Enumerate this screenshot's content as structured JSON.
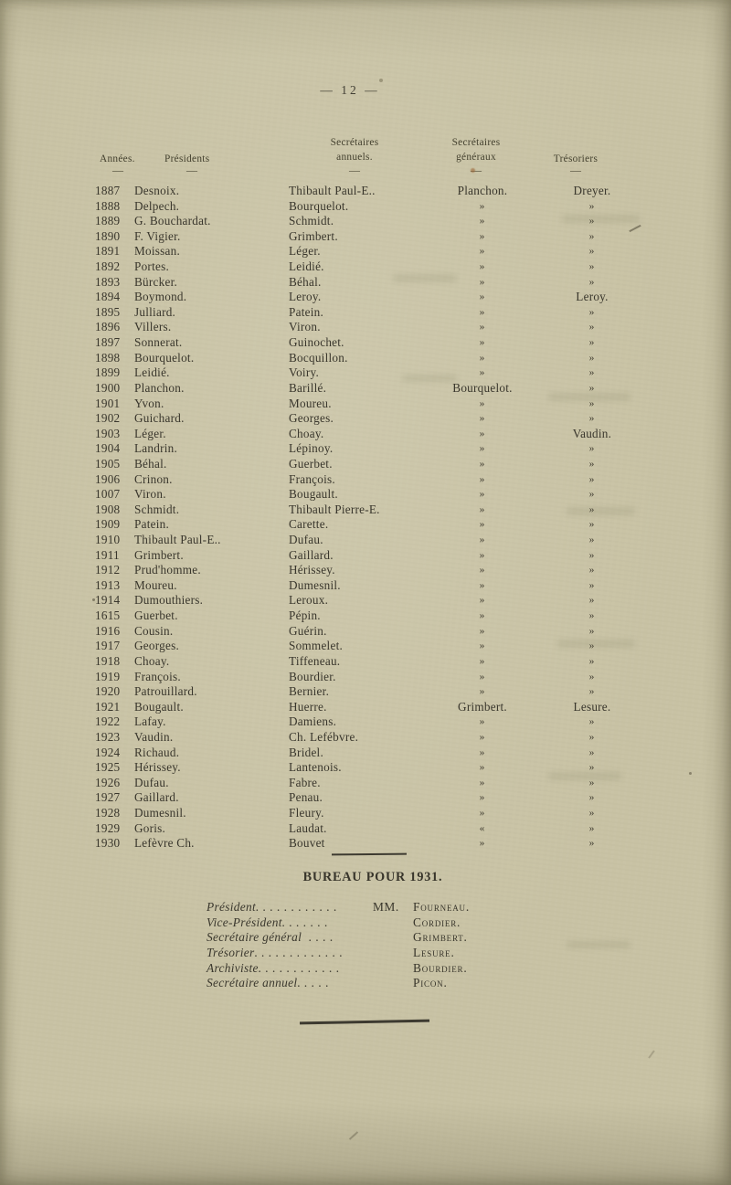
{
  "page": {
    "number": "— 12 —"
  },
  "table": {
    "headers": {
      "years": "Années.",
      "presidents": "Présidents",
      "sec_annuels": "Secrétaires\nannuels.",
      "sec_generaux": "Secrétaires\ngénéraux",
      "tresoriers": "Trésoriers",
      "underline": "—"
    },
    "rows": [
      [
        "1887",
        "Desnoix.",
        "Thibault Paul-E..",
        "Planchon.",
        "Dreyer."
      ],
      [
        "1888",
        "Delpech.",
        "Bourquelot.",
        "»",
        "»"
      ],
      [
        "1889",
        "G. Bouchardat.",
        "Schmidt.",
        "»",
        "»"
      ],
      [
        "1890",
        "F. Vigier.",
        "Grimbert.",
        "»",
        "»"
      ],
      [
        "1891",
        "Moissan.",
        "Léger.",
        "»",
        "»"
      ],
      [
        "1892",
        "Portes.",
        "Leidié.",
        "»",
        "»"
      ],
      [
        "1893",
        "Bürcker.",
        "Béhal.",
        "»",
        "»"
      ],
      [
        "1894",
        "Boymond.",
        "Leroy.",
        "»",
        "Leroy."
      ],
      [
        "1895",
        "Julliard.",
        "Patein.",
        "»",
        "»"
      ],
      [
        "1896",
        "Villers.",
        "Viron.",
        "»",
        "»"
      ],
      [
        "1897",
        "Sonnerat.",
        "Guinochet.",
        "»",
        "»"
      ],
      [
        "1898",
        "Bourquelot.",
        "Bocquillon.",
        "»",
        "»"
      ],
      [
        "1899",
        "Leidié.",
        "Voiry.",
        "»",
        "»"
      ],
      [
        "1900",
        "Planchon.",
        "Barillé.",
        "Bourquelot.",
        "»"
      ],
      [
        "1901",
        "Yvon.",
        "Moureu.",
        "»",
        "»"
      ],
      [
        "1902",
        "Guichard.",
        "Georges.",
        "»",
        "»"
      ],
      [
        "1903",
        "Léger.",
        "Choay.",
        "»",
        "Vaudin."
      ],
      [
        "1904",
        "Landrin.",
        "Lépinoy.",
        "»",
        "»"
      ],
      [
        "1905",
        "Béhal.",
        "Guerbet.",
        "»",
        "»"
      ],
      [
        "1906",
        "Crinon.",
        "François.",
        "»",
        "»"
      ],
      [
        "1007",
        "Viron.",
        "Bougault.",
        "»",
        "»"
      ],
      [
        "1908",
        "Schmidt.",
        "Thibault Pierre-E.",
        "»",
        "»"
      ],
      [
        "1909",
        "Patein.",
        "Carette.",
        "»",
        "»"
      ],
      [
        "1910",
        "Thibault Paul-E..",
        "Dufau.",
        "»",
        "»"
      ],
      [
        "1911",
        "Grimbert.",
        "Gaillard.",
        "»",
        "»"
      ],
      [
        "1912",
        "Prud'homme.",
        "Hérissey.",
        "»",
        "»"
      ],
      [
        "1913",
        "Moureu.",
        "Dumesnil.",
        "»",
        "»"
      ],
      [
        "1914",
        "Dumouthiers.",
        "Leroux.",
        "»",
        "»"
      ],
      [
        "1615",
        "Guerbet.",
        "Pépin.",
        "»",
        "»"
      ],
      [
        "1916",
        "Cousin.",
        "Guérin.",
        "»",
        "»"
      ],
      [
        "1917",
        "Georges.",
        "Sommelet.",
        "»",
        "»"
      ],
      [
        "1918",
        "Choay.",
        "Tiffeneau.",
        "»",
        "»"
      ],
      [
        "1919",
        "François.",
        "Bourdier.",
        "»",
        "»"
      ],
      [
        "1920",
        "Patrouillard.",
        "Bernier.",
        "»",
        "»"
      ],
      [
        "1921",
        "Bougault.",
        "Huerre.",
        "Grimbert.",
        "Lesure."
      ],
      [
        "1922",
        "Lafay.",
        "Damiens.",
        "»",
        "»"
      ],
      [
        "1923",
        "Vaudin.",
        "Ch. Lefébvre.",
        "»",
        "»"
      ],
      [
        "1924",
        "Richaud.",
        "Bridel.",
        "»",
        "»"
      ],
      [
        "1925",
        "Hérissey.",
        "Lantenois.",
        "»",
        "»"
      ],
      [
        "1926",
        "Dufau.",
        "Fabre.",
        "»",
        "»"
      ],
      [
        "1927",
        "Gaillard.",
        "Penau.",
        "»",
        "»"
      ],
      [
        "1928",
        "Dumesnil.",
        "Fleury.",
        "»",
        "»"
      ],
      [
        "1929",
        "Goris.",
        "Laudat.",
        "«",
        "»"
      ],
      [
        "1930",
        "Lefèvre Ch.",
        "Bouvet",
        "»",
        "»"
      ]
    ]
  },
  "bureau": {
    "title": "BUREAU POUR 1931.",
    "entries": [
      {
        "label": "Président",
        "dots": "............",
        "prefix": "MM.",
        "name": "Fourneau."
      },
      {
        "label": "Vice-Président",
        "dots": ".......",
        "prefix": "",
        "name": "Cordier."
      },
      {
        "label": "Secrétaire général",
        "dots": " ....",
        "prefix": "",
        "name": "Grimbert."
      },
      {
        "label": "Trésorier",
        "dots": ".............",
        "prefix": "",
        "name": "Lesure."
      },
      {
        "label": "Archiviste",
        "dots": "............",
        "prefix": "",
        "name": "Bourdier."
      },
      {
        "label": "Secrétaire annuel",
        "dots": ".....",
        "prefix": "",
        "name": "Picon."
      }
    ]
  },
  "colors": {
    "paper": "#c8c2a4",
    "ink": "#3a372e"
  }
}
